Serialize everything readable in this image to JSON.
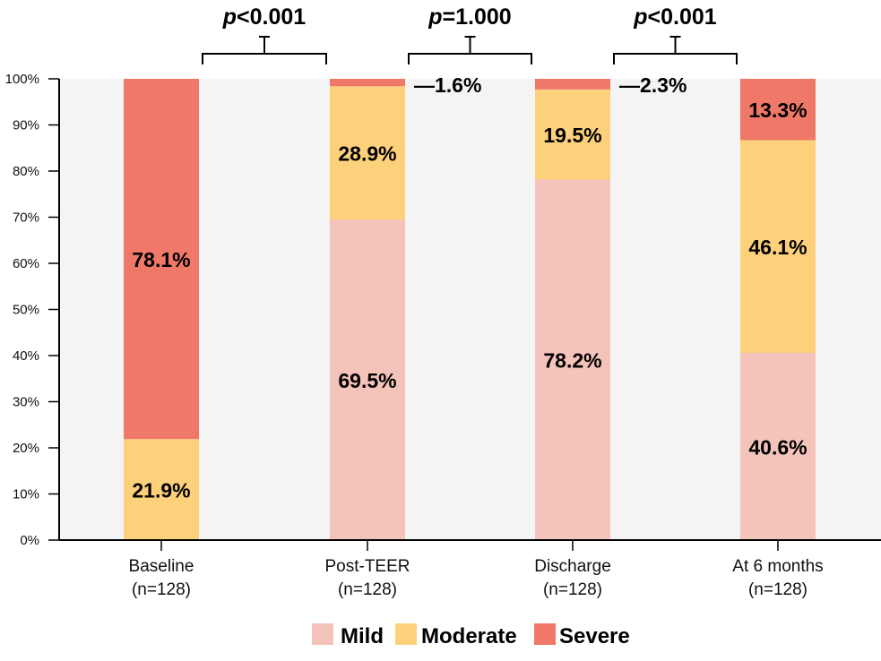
{
  "chart_data": {
    "type": "bar",
    "stacked": true,
    "title": "",
    "xlabel": "",
    "ylabel": "",
    "ylim": [
      0,
      100
    ],
    "yticks": [
      "0%",
      "10%",
      "20%",
      "30%",
      "40%",
      "50%",
      "60%",
      "70%",
      "80%",
      "90%",
      "100%"
    ],
    "categories": [
      {
        "label": "Baseline",
        "n": "(n=128)"
      },
      {
        "label": "Post-TEER",
        "n": "(n=128)"
      },
      {
        "label": "Discharge",
        "n": "(n=128)"
      },
      {
        "label": "At 6 months",
        "n": "(n=128)"
      }
    ],
    "series": [
      {
        "name": "Mild",
        "color": "#F4C3BA",
        "values": [
          0,
          69.5,
          78.2,
          40.6
        ],
        "labels": [
          "",
          "69.5%",
          "78.2%",
          "40.6%"
        ]
      },
      {
        "name": "Moderate",
        "color": "#FDD07C",
        "values": [
          21.9,
          28.9,
          19.5,
          46.1
        ],
        "labels": [
          "21.9%",
          "28.9%",
          "19.5%",
          "46.1%"
        ]
      },
      {
        "name": "Severe",
        "color": "#F07869",
        "values": [
          78.1,
          1.6,
          2.3,
          13.3
        ],
        "labels": [
          "78.1%",
          "—1.6%",
          "—2.3%",
          "13.3%"
        ]
      }
    ],
    "comparisons": [
      {
        "from": 0,
        "to": 1,
        "p_symbol": "p",
        "p_text": "<0.001"
      },
      {
        "from": 1,
        "to": 2,
        "p_symbol": "p",
        "p_text": "=1.000"
      },
      {
        "from": 2,
        "to": 3,
        "p_symbol": "p",
        "p_text": "<0.001"
      }
    ],
    "legend": {
      "position": "bottom-center",
      "items": [
        "Mild",
        "Moderate",
        "Severe"
      ]
    },
    "plot_background": "#F4F4F4",
    "grid": false
  }
}
